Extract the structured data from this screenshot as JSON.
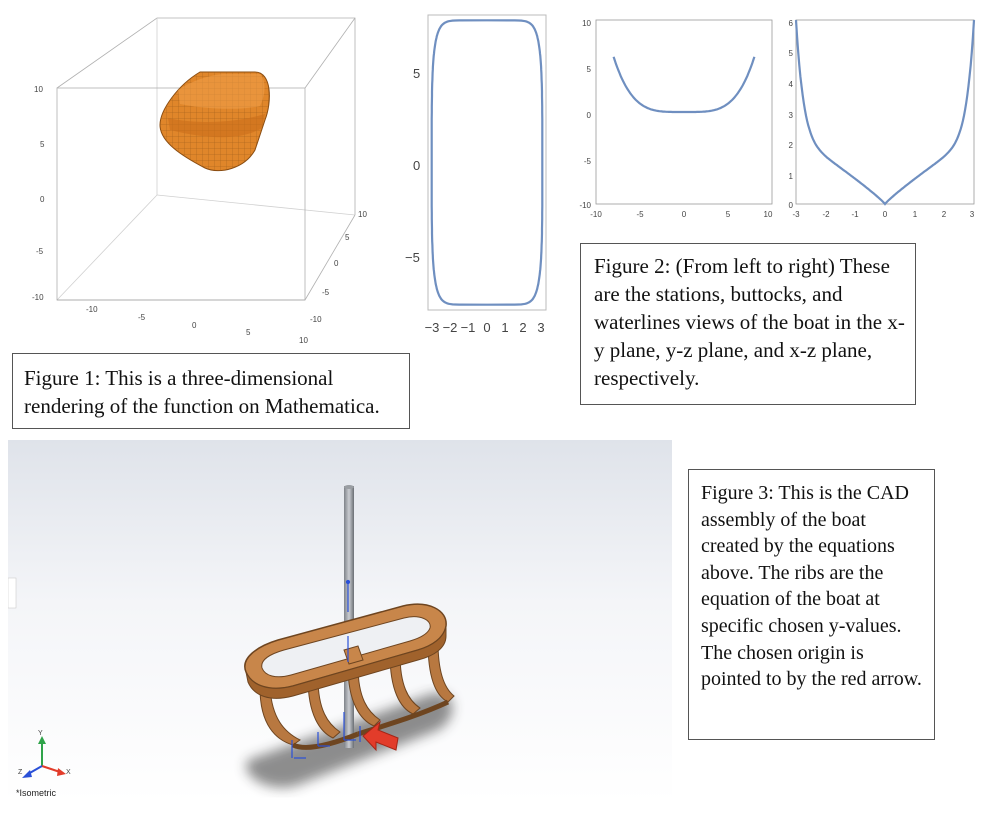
{
  "figure1": {
    "caption": "Figure 1: This is a three-dimensional rendering of the function on Mathematica.",
    "z_ticks": [
      "10",
      "5",
      "0",
      "-5",
      "-10"
    ],
    "x_ticks": [
      "-10",
      "-5",
      "0",
      "5",
      "10"
    ],
    "y_ticks": [
      "10",
      "5",
      "0",
      "-5",
      "-10"
    ],
    "surface_color": "#e0862a"
  },
  "figure2": {
    "caption": "Figure 2: (From left to right) These are the stations, buttocks, and waterlines views of the boat in the x-y plane, y-z plane, and x-z plane, respectively.",
    "line_color": "#6f8fc0",
    "charts": [
      {
        "type": "line",
        "view": "waterlines (x-y plane)",
        "xticks": [
          "−3",
          "−2",
          "−1",
          "0",
          "1",
          "2",
          "3"
        ],
        "yticks": [
          "5",
          "0",
          "−5"
        ],
        "xlim": [
          -3.2,
          3.2
        ],
        "ylim": [
          -8.3,
          8.3
        ]
      },
      {
        "type": "line",
        "view": "stations",
        "xticks": [
          "-10",
          "-5",
          "0",
          "5",
          "10"
        ],
        "yticks": [
          "10",
          "5",
          "0",
          "-5",
          "-10"
        ],
        "xlim": [
          -10,
          10
        ],
        "ylim": [
          -10,
          10
        ]
      },
      {
        "type": "line",
        "view": "buttocks",
        "xticks": [
          "-3",
          "-2",
          "-1",
          "0",
          "1",
          "2",
          "3"
        ],
        "yticks": [
          "6",
          "5",
          "4",
          "3",
          "2",
          "1",
          "0"
        ],
        "xlim": [
          -3,
          3
        ],
        "ylim": [
          0,
          6
        ]
      }
    ]
  },
  "figure3": {
    "caption": "Figure 3: This is the CAD assembly of the boat created by the equations above. The ribs are the equation of the boat at specific chosen y-values. The chosen origin is pointed to by the red arrow.",
    "view_label": "*Isometric",
    "triad": {
      "x": "X",
      "y": "Y",
      "z": "Z"
    },
    "rib_color": "#b87840",
    "arrow_color": "#e23c2a"
  }
}
